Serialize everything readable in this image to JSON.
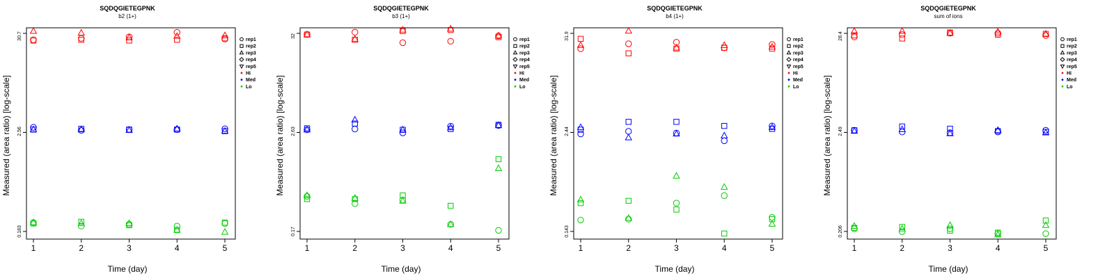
{
  "panels": [
    {
      "title": "SQDQGIETEGPNK",
      "subtitle": "b2 (1+)",
      "xlabel": "Time (day)",
      "ylabel": "Measured (area ratio) [log-scale]",
      "y_scale": "log",
      "y_ticks": [
        "30.7",
        "2.56",
        "0.183"
      ],
      "x_ticks": [
        "1",
        "2",
        "3",
        "4",
        "5"
      ]
    },
    {
      "title": "SQDQGIETEGPNK",
      "subtitle": "b3 (1+)",
      "xlabel": "Time (day)",
      "ylabel": "Measured (area ratio) [log-scale]",
      "y_scale": "log",
      "y_ticks": [
        "32",
        "2.63",
        "0.17"
      ],
      "x_ticks": [
        "1",
        "2",
        "3",
        "4",
        "5"
      ]
    },
    {
      "title": "SQDQGIETEGPNK",
      "subtitle": "b4 (1+)",
      "xlabel": "Time (day)",
      "ylabel": "Measured (area ratio) [log-scale]",
      "y_scale": "log",
      "y_ticks": [
        "31.9",
        "2.44",
        "0.143"
      ],
      "x_ticks": [
        "1",
        "2",
        "3",
        "4",
        "5"
      ]
    },
    {
      "title": "SQDQGIETEGPNK",
      "subtitle": "sum of ions",
      "xlabel": "Time (day)",
      "ylabel": "Measured (area ratio) [log-scale]",
      "y_scale": "log",
      "y_ticks": [
        "28.4",
        "2.49",
        "0.206"
      ],
      "x_ticks": [
        "1",
        "2",
        "3",
        "4",
        "5"
      ]
    }
  ],
  "legend": {
    "replicates": [
      {
        "label": "rep1",
        "symbol": "circle"
      },
      {
        "label": "rep2",
        "symbol": "square"
      },
      {
        "label": "rep3",
        "symbol": "triangle-up"
      },
      {
        "label": "rep4",
        "symbol": "diamond"
      },
      {
        "label": "rep5",
        "symbol": "triangle-down"
      }
    ],
    "levels": [
      {
        "label": "Hi",
        "color": "#ff0000"
      },
      {
        "label": "Med",
        "color": "#0000ff"
      },
      {
        "label": "Lo",
        "color": "#00cc00"
      }
    ]
  },
  "chart_data": [
    {
      "type": "scatter",
      "y_scale": "log",
      "ylim": [
        0.183,
        30.7
      ],
      "x": [
        1,
        2,
        3,
        4,
        5
      ],
      "series": [
        {
          "level": "Hi",
          "rep": "rep1",
          "values": [
            26.0,
            27.0,
            28.0,
            31.5,
            26.5
          ]
        },
        {
          "level": "Hi",
          "rep": "rep2",
          "values": [
            25.5,
            26.0,
            25.5,
            26.0,
            27.0
          ]
        },
        {
          "level": "Hi",
          "rep": "rep3",
          "values": [
            32.5,
            31.0,
            27.5,
            28.5,
            29.0
          ]
        },
        {
          "level": "Med",
          "rep": "rep1",
          "values": [
            2.7,
            2.5,
            2.55,
            2.55,
            2.6
          ]
        },
        {
          "level": "Med",
          "rep": "rep2",
          "values": [
            2.55,
            2.6,
            2.55,
            2.55,
            2.45
          ]
        },
        {
          "level": "Med",
          "rep": "rep3",
          "values": [
            2.55,
            2.55,
            2.5,
            2.6,
            2.45
          ]
        },
        {
          "level": "Lo",
          "rep": "rep1",
          "values": [
            0.23,
            0.21,
            0.22,
            0.21,
            0.225
          ]
        },
        {
          "level": "Lo",
          "rep": "rep2",
          "values": [
            0.225,
            0.235,
            0.215,
            0.19,
            0.23
          ]
        },
        {
          "level": "Lo",
          "rep": "rep3",
          "values": [
            0.23,
            0.225,
            0.225,
            0.19,
            0.18
          ]
        }
      ]
    },
    {
      "type": "scatter",
      "y_scale": "log",
      "ylim": [
        0.17,
        32
      ],
      "x": [
        1,
        2,
        3,
        4,
        5
      ],
      "series": [
        {
          "level": "Hi",
          "rep": "rep1",
          "values": [
            31.0,
            33.0,
            25.0,
            26.0,
            30.0
          ]
        },
        {
          "level": "Hi",
          "rep": "rep2",
          "values": [
            31.0,
            27.0,
            34.0,
            35.0,
            29.0
          ]
        },
        {
          "level": "Hi",
          "rep": "rep3",
          "values": [
            31.0,
            27.5,
            35.0,
            36.0,
            30.0
          ]
        },
        {
          "level": "Med",
          "rep": "rep1",
          "values": [
            2.5,
            2.55,
            2.3,
            2.75,
            2.8
          ]
        },
        {
          "level": "Med",
          "rep": "rep2",
          "values": [
            2.6,
            2.95,
            2.5,
            2.55,
            2.85
          ]
        },
        {
          "level": "Med",
          "rep": "rep3",
          "values": [
            2.5,
            3.25,
            2.5,
            2.65,
            2.8
          ]
        },
        {
          "level": "Lo",
          "rep": "rep1",
          "values": [
            0.43,
            0.355,
            0.39,
            0.205,
            0.175
          ]
        },
        {
          "level": "Lo",
          "rep": "rep2",
          "values": [
            0.4,
            0.4,
            0.44,
            0.335,
            1.15
          ]
        },
        {
          "level": "Lo",
          "rep": "rep3",
          "values": [
            0.44,
            0.41,
            0.38,
            0.205,
            0.9
          ]
        }
      ]
    },
    {
      "type": "scatter",
      "y_scale": "log",
      "ylim": [
        0.143,
        31.9
      ],
      "x": [
        1,
        2,
        3,
        4,
        5
      ],
      "series": [
        {
          "level": "Hi",
          "rep": "rep1",
          "values": [
            21.0,
            24.0,
            25.0,
            21.5,
            23.5
          ]
        },
        {
          "level": "Hi",
          "rep": "rep2",
          "values": [
            27.5,
            18.5,
            21.0,
            21.5,
            21.0
          ]
        },
        {
          "level": "Hi",
          "rep": "rep3",
          "values": [
            23.0,
            34.0,
            21.5,
            23.0,
            22.0
          ]
        },
        {
          "level": "Med",
          "rep": "rep1",
          "values": [
            2.05,
            2.2,
            2.1,
            1.7,
            2.55
          ]
        },
        {
          "level": "Med",
          "rep": "rep2",
          "values": [
            2.3,
            2.85,
            2.85,
            2.55,
            2.35
          ]
        },
        {
          "level": "Med",
          "rep": "rep3",
          "values": [
            2.45,
            1.85,
            2.05,
            1.95,
            2.45
          ]
        },
        {
          "level": "Lo",
          "rep": "rep1",
          "values": [
            0.195,
            0.2,
            0.31,
            0.38,
            0.21
          ]
        },
        {
          "level": "Lo",
          "rep": "rep2",
          "values": [
            0.31,
            0.33,
            0.26,
            0.135,
            0.2
          ]
        },
        {
          "level": "Lo",
          "rep": "rep3",
          "values": [
            0.34,
            0.205,
            0.65,
            0.48,
            0.175
          ]
        }
      ]
    },
    {
      "type": "scatter",
      "y_scale": "log",
      "ylim": [
        0.206,
        28.4
      ],
      "x": [
        1,
        2,
        3,
        4,
        5
      ],
      "series": [
        {
          "level": "Hi",
          "rep": "rep1",
          "values": [
            26.0,
            27.5,
            28.5,
            28.5,
            27.0
          ]
        },
        {
          "level": "Hi",
          "rep": "rep2",
          "values": [
            27.0,
            25.0,
            29.0,
            27.5,
            28.0
          ]
        },
        {
          "level": "Hi",
          "rep": "rep3",
          "values": [
            30.0,
            30.0,
            28.5,
            29.5,
            28.0
          ]
        },
        {
          "level": "Med",
          "rep": "rep1",
          "values": [
            2.55,
            2.45,
            2.4,
            2.45,
            2.55
          ]
        },
        {
          "level": "Med",
          "rep": "rep2",
          "values": [
            2.55,
            2.8,
            2.65,
            2.5,
            2.45
          ]
        },
        {
          "level": "Med",
          "rep": "rep3",
          "values": [
            2.5,
            2.6,
            2.35,
            2.55,
            2.4
          ]
        },
        {
          "level": "Lo",
          "rep": "rep1",
          "values": [
            0.22,
            0.205,
            0.22,
            0.195,
            0.195
          ]
        },
        {
          "level": "Lo",
          "rep": "rep2",
          "values": [
            0.225,
            0.23,
            0.21,
            0.2,
            0.27
          ]
        },
        {
          "level": "Lo",
          "rep": "rep3",
          "values": [
            0.235,
            0.22,
            0.24,
            0.19,
            0.24
          ]
        }
      ]
    }
  ]
}
